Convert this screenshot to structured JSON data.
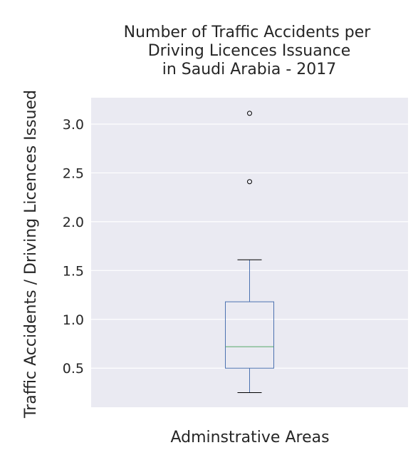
{
  "chart_data": {
    "type": "box",
    "title_lines": [
      "Number of Traffic Accidents per",
      "Driving Licences Issuance",
      "in Saudi Arabia - 2017"
    ],
    "xlabel": "Adminstrative Areas",
    "ylabel": "Traffic Accidents / Driving Licences Issued",
    "ylim": [
      0.1,
      3.27
    ],
    "yticks": [
      {
        "value": 0.5,
        "label": "0.5"
      },
      {
        "value": 1.0,
        "label": "1.0"
      },
      {
        "value": 1.5,
        "label": "1.5"
      },
      {
        "value": 2.0,
        "label": "2.0"
      },
      {
        "value": 2.5,
        "label": "2.5"
      },
      {
        "value": 3.0,
        "label": "3.0"
      }
    ],
    "grid": true,
    "box": {
      "whisker_low": 0.25,
      "q1": 0.5,
      "median": 0.72,
      "q3": 1.18,
      "whisker_high": 1.61,
      "outliers": [
        2.41,
        3.11
      ]
    },
    "colors": {
      "plot_background": "#eaeaf2",
      "grid": "#ffffff",
      "box": "#4c72b0",
      "median": "#55a868",
      "outlier": "#000000",
      "text": "#262626"
    }
  }
}
